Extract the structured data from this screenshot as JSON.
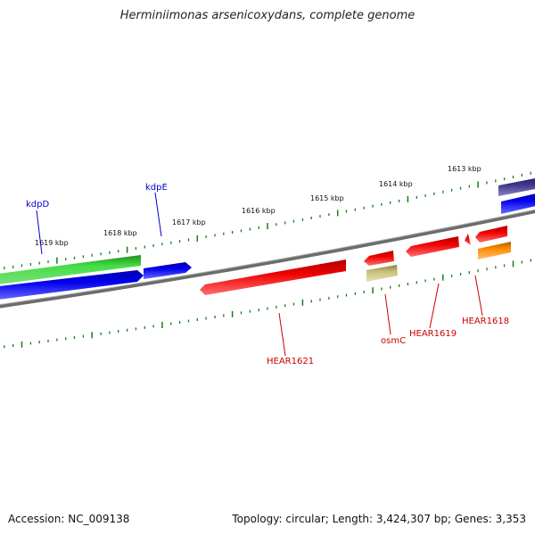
{
  "title": "Herminiimonas arsenicoxydans, complete genome",
  "footer": {
    "accession": "Accession: NC_009138",
    "stats": "Topology: circular; Length: 3,424,307 bp; Genes: 3,353"
  },
  "scale": {
    "labels": [
      "1619 kbp",
      "1618 kbp",
      "1617 kbp",
      "1616 kbp",
      "1615 kbp",
      "1614 kbp",
      "1613 kbp"
    ],
    "color": "#1a7a1a"
  },
  "genes": [
    {
      "name": "kdpD",
      "color": "#0000cc"
    },
    {
      "name": "kdpE",
      "color": "#0000cc"
    },
    {
      "name": "HEAR1621",
      "color": "#cc0000"
    },
    {
      "name": "osmC",
      "color": "#cc0000"
    },
    {
      "name": "HEAR1619",
      "color": "#cc0000"
    },
    {
      "name": "HEAR1618",
      "color": "#cc0000"
    }
  ],
  "colors": {
    "green_gene": "#33cc33",
    "blue_gene": "#0000ee",
    "red_gene": "#ee0000",
    "khaki_gene": "#c8c078",
    "orange_gene": "#ff8c00",
    "purple_gene": "#3b3488",
    "backbone": "#808080"
  }
}
